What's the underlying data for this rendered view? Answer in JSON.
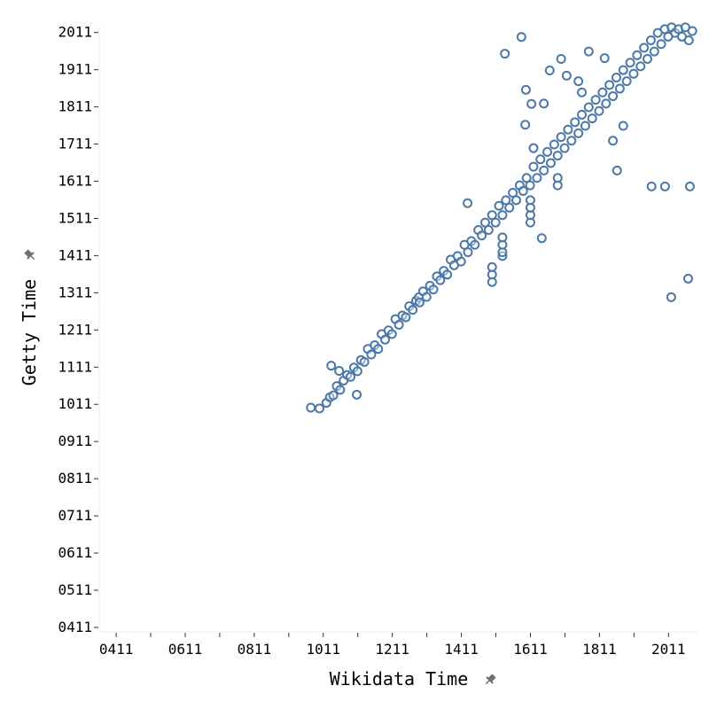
{
  "chart_data": {
    "type": "scatter",
    "xlabel": "Wikidata Time",
    "ylabel": "Getty Time",
    "x_ticks": [
      "0411",
      "0611",
      "0811",
      "1011",
      "1211",
      "1411",
      "1611",
      "1811",
      "2011"
    ],
    "y_ticks": [
      "0411",
      "0511",
      "0611",
      "0711",
      "0811",
      "0911",
      "1011",
      "1111",
      "1211",
      "1311",
      "1411",
      "1511",
      "1611",
      "1711",
      "1811",
      "1911",
      "2011"
    ],
    "xlim": [
      362,
      2095
    ],
    "ylim": [
      418,
      2027
    ],
    "grid": false,
    "marker": "open-circle",
    "color": "#4c78a8",
    "axis_title_icon": "pin-icon",
    "points": [
      [
        975,
        1002
      ],
      [
        1000,
        1000
      ],
      [
        1020,
        1015
      ],
      [
        1030,
        1030
      ],
      [
        1040,
        1035
      ],
      [
        1034,
        1115
      ],
      [
        1057,
        1101
      ],
      [
        1108,
        1037
      ],
      [
        1050,
        1060
      ],
      [
        1060,
        1050
      ],
      [
        1070,
        1075
      ],
      [
        1080,
        1090
      ],
      [
        1090,
        1085
      ],
      [
        1100,
        1110
      ],
      [
        1110,
        1100
      ],
      [
        1120,
        1130
      ],
      [
        1130,
        1125
      ],
      [
        1140,
        1160
      ],
      [
        1150,
        1145
      ],
      [
        1160,
        1170
      ],
      [
        1170,
        1160
      ],
      [
        1180,
        1200
      ],
      [
        1190,
        1185
      ],
      [
        1200,
        1210
      ],
      [
        1210,
        1200
      ],
      [
        1220,
        1240
      ],
      [
        1230,
        1225
      ],
      [
        1240,
        1250
      ],
      [
        1250,
        1245
      ],
      [
        1260,
        1275
      ],
      [
        1270,
        1265
      ],
      [
        1280,
        1290
      ],
      [
        1288,
        1299
      ],
      [
        1290,
        1285
      ],
      [
        1300,
        1315
      ],
      [
        1310,
        1300
      ],
      [
        1320,
        1330
      ],
      [
        1330,
        1320
      ],
      [
        1340,
        1355
      ],
      [
        1350,
        1345
      ],
      [
        1360,
        1370
      ],
      [
        1370,
        1360
      ],
      [
        1380,
        1400
      ],
      [
        1390,
        1385
      ],
      [
        1400,
        1410
      ],
      [
        1410,
        1395
      ],
      [
        1420,
        1440
      ],
      [
        1430,
        1420
      ],
      [
        1440,
        1450
      ],
      [
        1450,
        1440
      ],
      [
        1460,
        1480
      ],
      [
        1470,
        1465
      ],
      [
        1480,
        1500
      ],
      [
        1490,
        1480
      ],
      [
        1500,
        1520
      ],
      [
        1510,
        1500
      ],
      [
        1520,
        1545
      ],
      [
        1530,
        1520
      ],
      [
        1540,
        1560
      ],
      [
        1550,
        1540
      ],
      [
        1560,
        1580
      ],
      [
        1570,
        1560
      ],
      [
        1580,
        1600
      ],
      [
        1590,
        1585
      ],
      [
        1600,
        1620
      ],
      [
        1610,
        1600
      ],
      [
        1620,
        1650
      ],
      [
        1630,
        1620
      ],
      [
        1640,
        1670
      ],
      [
        1650,
        1640
      ],
      [
        1660,
        1690
      ],
      [
        1670,
        1660
      ],
      [
        1680,
        1710
      ],
      [
        1690,
        1680
      ],
      [
        1700,
        1730
      ],
      [
        1710,
        1700
      ],
      [
        1720,
        1750
      ],
      [
        1730,
        1720
      ],
      [
        1740,
        1770
      ],
      [
        1750,
        1740
      ],
      [
        1760,
        1790
      ],
      [
        1770,
        1760
      ],
      [
        1780,
        1810
      ],
      [
        1790,
        1780
      ],
      [
        1800,
        1830
      ],
      [
        1810,
        1800
      ],
      [
        1820,
        1850
      ],
      [
        1830,
        1820
      ],
      [
        1840,
        1870
      ],
      [
        1850,
        1840
      ],
      [
        1860,
        1890
      ],
      [
        1870,
        1860
      ],
      [
        1880,
        1910
      ],
      [
        1890,
        1880
      ],
      [
        1900,
        1930
      ],
      [
        1910,
        1900
      ],
      [
        1920,
        1950
      ],
      [
        1930,
        1920
      ],
      [
        1940,
        1970
      ],
      [
        1950,
        1940
      ],
      [
        1960,
        1990
      ],
      [
        1970,
        1960
      ],
      [
        1980,
        2010
      ],
      [
        1990,
        1980
      ],
      [
        2000,
        2020
      ],
      [
        2010,
        2000
      ],
      [
        2020,
        2025
      ],
      [
        2030,
        2010
      ],
      [
        2040,
        2020
      ],
      [
        2050,
        2000
      ],
      [
        2060,
        2025
      ],
      [
        2070,
        1990
      ],
      [
        2080,
        2015
      ],
      [
        1500,
        1340
      ],
      [
        1500,
        1360
      ],
      [
        1500,
        1380
      ],
      [
        1530,
        1410
      ],
      [
        1530,
        1420
      ],
      [
        1530,
        1440
      ],
      [
        1530,
        1460
      ],
      [
        1611,
        1500
      ],
      [
        1611,
        1520
      ],
      [
        1611,
        1540
      ],
      [
        1611,
        1560
      ],
      [
        1690,
        1600
      ],
      [
        1690,
        1620
      ],
      [
        1429,
        1552
      ],
      [
        1644,
        1458
      ],
      [
        1537,
        1954
      ],
      [
        1585,
        1999
      ],
      [
        1598,
        1857
      ],
      [
        1614,
        1819
      ],
      [
        1596,
        1763
      ],
      [
        1667,
        1909
      ],
      [
        1716,
        1895
      ],
      [
        1826,
        1942
      ],
      [
        1862,
        1640
      ],
      [
        1962,
        1597
      ],
      [
        2001,
        1597
      ],
      [
        2073,
        1597
      ],
      [
        2019,
        1299
      ],
      [
        2068,
        1349
      ],
      [
        1780,
        1960
      ],
      [
        1700,
        1940
      ],
      [
        1650,
        1820
      ],
      [
        1750,
        1880
      ],
      [
        1850,
        1720
      ],
      [
        1880,
        1760
      ],
      [
        1620,
        1700
      ],
      [
        1760,
        1850
      ]
    ]
  }
}
